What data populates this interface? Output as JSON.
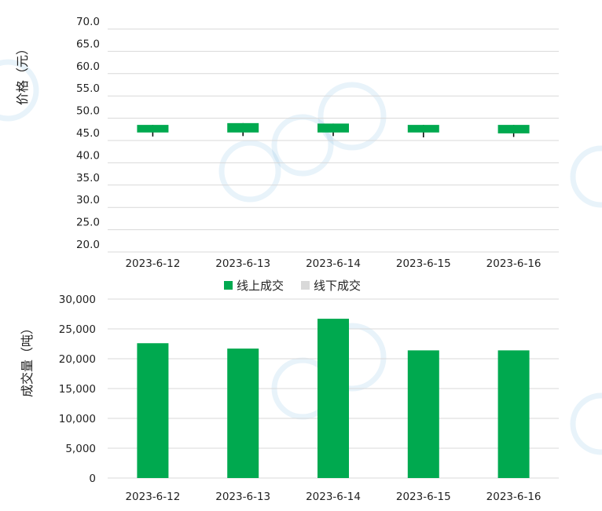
{
  "chart_data": [
    {
      "type": "candlestick",
      "ylabel": "价格（元）",
      "yticks": [
        "70.0",
        "65.0",
        "60.0",
        "55.0",
        "50.0",
        "45.0",
        "40.0",
        "35.0",
        "30.0",
        "25.0",
        "20.0"
      ],
      "ylim": [
        20,
        70
      ],
      "categories": [
        "2023-6-12",
        "2023-6-13",
        "2023-6-14",
        "2023-6-15",
        "2023-6-16"
      ],
      "series": [
        {
          "open": [
            46.8,
            46.8,
            46.8,
            46.8,
            46.6
          ],
          "close": [
            48.5,
            48.9,
            48.8,
            48.5,
            48.5
          ],
          "high": [
            48.5,
            48.9,
            48.8,
            48.5,
            48.5
          ],
          "low": [
            45.9,
            46.0,
            46.0,
            45.7,
            45.8
          ]
        }
      ],
      "colors": {
        "up": "#00a94f"
      },
      "grid": true
    },
    {
      "type": "bar",
      "ylabel": "成交量（吨）",
      "yticks": [
        "30,000",
        "25,000",
        "20,000",
        "15,000",
        "10,000",
        "5,000",
        "0"
      ],
      "ylim": [
        0,
        30000
      ],
      "categories": [
        "2023-6-12",
        "2023-6-13",
        "2023-6-14",
        "2023-6-15",
        "2023-6-16"
      ],
      "series": [
        {
          "name": "线上成交",
          "color": "#00a94f",
          "values": [
            22600,
            21700,
            26700,
            21400,
            21400
          ]
        },
        {
          "name": "线下成交",
          "color": "#d9d9d9",
          "values": [
            0,
            0,
            0,
            0,
            0
          ]
        }
      ],
      "legend": "top-center",
      "grid": true
    }
  ]
}
